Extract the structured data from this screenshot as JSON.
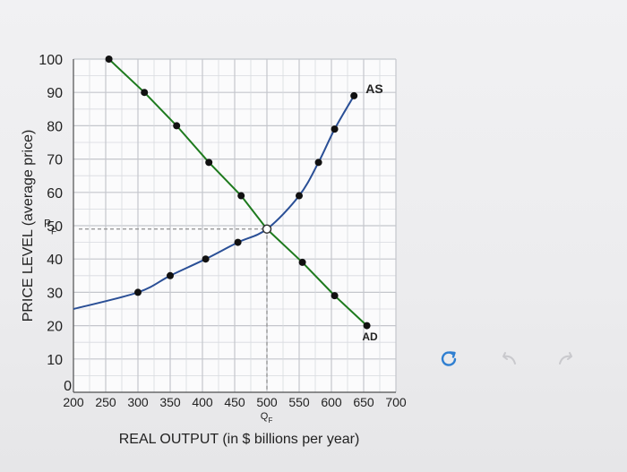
{
  "chart_data": {
    "type": "line",
    "title": "",
    "xlabel": "REAL OUTPUT (in $ billions per year)",
    "ylabel": "PRICE LEVEL (average price)",
    "xlim": [
      200,
      700
    ],
    "ylim": [
      0,
      100
    ],
    "x_ticks": [
      "200",
      "250",
      "300",
      "350",
      "400",
      "450",
      "500",
      "550",
      "600",
      "650",
      "700"
    ],
    "y_ticks": [
      "0",
      "10",
      "20",
      "30",
      "40",
      "50",
      "60",
      "70",
      "80",
      "90",
      "100"
    ],
    "grid": true,
    "series": [
      {
        "name": "AD",
        "color": "#1e7a1e",
        "x": [
          255,
          310,
          360,
          410,
          460,
          500,
          555,
          605,
          655
        ],
        "y": [
          100,
          90,
          80,
          69,
          59,
          49,
          39,
          29,
          20
        ]
      },
      {
        "name": "AS",
        "color": "#2a4f96",
        "x": [
          200,
          300,
          350,
          405,
          455,
          500,
          550,
          580,
          605,
          635
        ],
        "y": [
          25,
          30,
          35,
          40,
          45,
          49,
          59,
          69,
          79,
          89
        ]
      }
    ],
    "equilibrium": {
      "x": 500,
      "y": 49,
      "x_label": "Q",
      "x_label_sub": "F",
      "y_label": "P",
      "y_label_sub": "F"
    },
    "curve_labels": {
      "as": "AS",
      "ad": "AD"
    }
  },
  "toolbar": {
    "reset_icon": "reset-icon",
    "undo_icon": "undo-icon",
    "redo_icon": "redo-icon",
    "reset_color": "#2f7fd1",
    "arrow_color": "#c9c9cd"
  }
}
